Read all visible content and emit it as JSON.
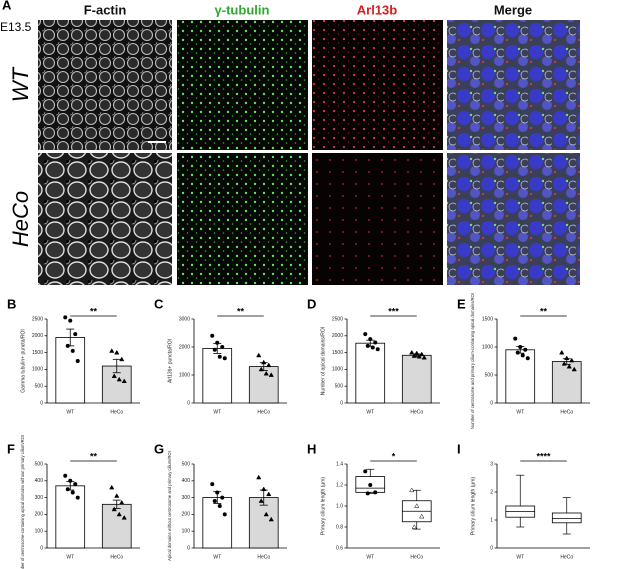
{
  "figure": {
    "label": "A",
    "stage": "E13.5",
    "columns": [
      "F-actin",
      "γ-tubulin",
      "Arl13b",
      "Merge"
    ],
    "column_colors": [
      "#111111",
      "#2fa82f",
      "#d02020",
      "#111111"
    ],
    "rows": [
      "WT",
      "HeCo"
    ]
  },
  "chart_data": [
    {
      "label": "B",
      "type": "bar",
      "ylabel": "Gamma tubulin+ puncta/ROI",
      "categories": [
        "WT",
        "HeCo"
      ],
      "values": [
        1950,
        1100
      ],
      "errors": [
        250,
        200
      ],
      "points": [
        [
          2550,
          2450,
          2050,
          1700,
          1550,
          1250
        ],
        [
          1550,
          1500,
          1300,
          800,
          700,
          650
        ]
      ],
      "colors": [
        "#ffffff",
        "#d9d9d9"
      ],
      "ylim": [
        0,
        2500
      ],
      "yticks": [
        0,
        500,
        1000,
        1500,
        2000,
        2500
      ],
      "significance": "**"
    },
    {
      "label": "C",
      "type": "bar",
      "ylabel": "Arl13b+ puncta/ROI",
      "categories": [
        "WT",
        "HeCo"
      ],
      "values": [
        1950,
        1300
      ],
      "errors": [
        180,
        140
      ],
      "points": [
        [
          2400,
          2150,
          2000,
          1900,
          1650,
          1600
        ],
        [
          1700,
          1450,
          1350,
          1200,
          1050,
          1000
        ]
      ],
      "colors": [
        "#ffffff",
        "#d9d9d9"
      ],
      "ylim": [
        0,
        3000
      ],
      "yticks": [
        0,
        1000,
        2000,
        3000
      ],
      "significance": "**"
    },
    {
      "label": "D",
      "type": "bar",
      "ylabel": "Number of apical domains/ROI",
      "categories": [
        "WT",
        "HeCo"
      ],
      "values": [
        1780,
        1420
      ],
      "errors": [
        90,
        40
      ],
      "points": [
        [
          2050,
          1900,
          1800,
          1700,
          1650,
          1600
        ],
        [
          1500,
          1480,
          1450,
          1400,
          1380,
          1350
        ]
      ],
      "colors": [
        "#ffffff",
        "#d9d9d9"
      ],
      "ylim": [
        0,
        2500
      ],
      "yticks": [
        0,
        500,
        1000,
        1500,
        2000,
        2500
      ],
      "significance": "***"
    },
    {
      "label": "E",
      "type": "bar",
      "ylabel": "Number of centrosome and primary cilium-containing apical domains/ROI",
      "categories": [
        "WT",
        "HeCo"
      ],
      "values": [
        950,
        740
      ],
      "errors": [
        60,
        50
      ],
      "points": [
        [
          1150,
          1000,
          950,
          900,
          850,
          800
        ],
        [
          900,
          800,
          760,
          700,
          650,
          600
        ]
      ],
      "colors": [
        "#ffffff",
        "#d9d9d9"
      ],
      "ylim": [
        0,
        1500
      ],
      "yticks": [
        0,
        500,
        1000,
        1500
      ],
      "significance": "**"
    },
    {
      "label": "F",
      "type": "bar",
      "ylabel": "Number of centrosome-containing apical domains without primary cilium/ROI",
      "categories": [
        "WT",
        "HeCo"
      ],
      "values": [
        370,
        260
      ],
      "errors": [
        25,
        25
      ],
      "points": [
        [
          430,
          400,
          380,
          350,
          330,
          300
        ],
        [
          360,
          310,
          270,
          230,
          200,
          180
        ]
      ],
      "colors": [
        "#ffffff",
        "#d9d9d9"
      ],
      "ylim": [
        0,
        500
      ],
      "yticks": [
        0,
        100,
        200,
        300,
        400,
        500
      ],
      "significance": "**"
    },
    {
      "label": "G",
      "type": "bar",
      "ylabel": "Apical domains without centrosome and primary cilium/ROI",
      "categories": [
        "WT",
        "HeCo"
      ],
      "values": [
        300,
        300
      ],
      "errors": [
        35,
        45
      ],
      "points": [
        [
          380,
          330,
          300,
          280,
          250,
          200
        ],
        [
          420,
          350,
          320,
          280,
          200,
          170
        ]
      ],
      "colors": [
        "#ffffff",
        "#d9d9d9"
      ],
      "ylim": [
        0,
        500
      ],
      "yticks": [
        0,
        100,
        200,
        300,
        400,
        500
      ]
    },
    {
      "label": "H",
      "type": "box",
      "ylabel": "Primary cilium length (μm)",
      "categories": [
        "WT",
        "HeCo"
      ],
      "boxes": [
        {
          "min": 1.12,
          "q1": 1.13,
          "median": 1.17,
          "q3": 1.28,
          "max": 1.35
        },
        {
          "min": 0.78,
          "q1": 0.85,
          "median": 0.95,
          "q3": 1.05,
          "max": 1.15
        }
      ],
      "points": [
        [
          1.33,
          1.2,
          1.13,
          1.12
        ],
        [
          1.15,
          1.0,
          0.9,
          0.8
        ]
      ],
      "ylim": [
        0.6,
        1.4
      ],
      "yticks": [
        0.6,
        0.8,
        {
          "value": 1,
          "label": "1.0"
        },
        1.2,
        1.4
      ],
      "significance": "*"
    },
    {
      "label": "I",
      "type": "box",
      "ylabel": "Primary cilium length (μm)",
      "categories": [
        "WT",
        "HeCo"
      ],
      "boxes": [
        {
          "min": 0.75,
          "q1": 1.1,
          "median": 1.3,
          "q3": 1.5,
          "max": 2.6
        },
        {
          "min": 0.5,
          "q1": 0.9,
          "median": 1.05,
          "q3": 1.25,
          "max": 1.8
        }
      ],
      "ylim": [
        0,
        3
      ],
      "yticks": [
        0,
        1,
        2,
        3
      ],
      "significance": "****"
    }
  ]
}
